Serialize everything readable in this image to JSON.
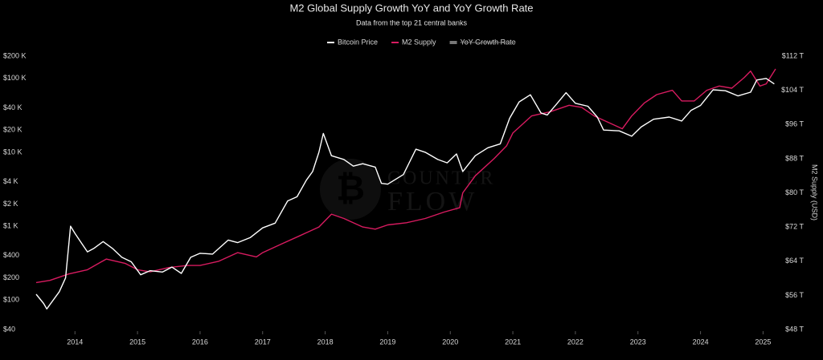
{
  "chart_data": {
    "type": "line",
    "title": "M2 Global Supply Growth YoY and YoY Growth Rate",
    "subtitle": "Data from the top 21 central banks",
    "y2_label": "M2 Supply (USD)",
    "watermark": [
      "COUNTER",
      "FLOW"
    ],
    "ylog": true,
    "grid": false,
    "legend": "top",
    "xlim": [
      2013.38,
      2025.2
    ],
    "xticks": [
      2014,
      2015,
      2016,
      2017,
      2018,
      2019,
      2020,
      2021,
      2022,
      2023,
      2024,
      2025
    ],
    "ylim": [
      40,
      200000
    ],
    "yticks": [
      {
        "value": 40,
        "label": "$40"
      },
      {
        "value": 100,
        "label": "$100"
      },
      {
        "value": 200,
        "label": "$200"
      },
      {
        "value": 400,
        "label": "$400"
      },
      {
        "value": 1000,
        "label": "$1 K"
      },
      {
        "value": 2000,
        "label": "$2 K"
      },
      {
        "value": 4000,
        "label": "$4 K"
      },
      {
        "value": 10000,
        "label": "$10 K"
      },
      {
        "value": 20000,
        "label": "$20 K"
      },
      {
        "value": 40000,
        "label": "$40 K"
      },
      {
        "value": 100000,
        "label": "$100 K"
      },
      {
        "value": 200000,
        "label": "$200 K"
      }
    ],
    "y2lim": [
      48,
      112
    ],
    "y2ticks": [
      {
        "value": 48,
        "label": "$48 T"
      },
      {
        "value": 56,
        "label": "$56 T"
      },
      {
        "value": 64,
        "label": "$64 T"
      },
      {
        "value": 72,
        "label": "$72 T"
      },
      {
        "value": 80,
        "label": "$80 T"
      },
      {
        "value": 88,
        "label": "$88 T"
      },
      {
        "value": 96,
        "label": "$96 T"
      },
      {
        "value": 104,
        "label": "$104 T"
      },
      {
        "value": 112,
        "label": "$112 T"
      }
    ],
    "series": [
      {
        "name": "Bitcoin Price",
        "color": "#ffffff",
        "axis": "y",
        "x": [
          2013.38,
          2013.5,
          2013.55,
          2013.75,
          2013.85,
          2013.93,
          2014.0,
          2014.1,
          2014.2,
          2014.3,
          2014.45,
          2014.6,
          2014.75,
          2014.9,
          2015.05,
          2015.2,
          2015.4,
          2015.55,
          2015.7,
          2015.85,
          2016.0,
          2016.2,
          2016.45,
          2016.6,
          2016.8,
          2017.0,
          2017.2,
          2017.4,
          2017.55,
          2017.7,
          2017.8,
          2017.9,
          2017.97,
          2018.1,
          2018.3,
          2018.45,
          2018.6,
          2018.8,
          2018.9,
          2019.0,
          2019.25,
          2019.45,
          2019.6,
          2019.8,
          2019.95,
          2020.1,
          2020.2,
          2020.4,
          2020.6,
          2020.8,
          2020.95,
          2021.1,
          2021.28,
          2021.45,
          2021.55,
          2021.7,
          2021.85,
          2022.0,
          2022.2,
          2022.35,
          2022.45,
          2022.7,
          2022.9,
          2023.05,
          2023.25,
          2023.5,
          2023.7,
          2023.85,
          2024.0,
          2024.2,
          2024.4,
          2024.6,
          2024.8,
          2024.9,
          2025.05,
          2025.18
        ],
        "values": [
          120,
          90,
          76,
          130,
          200,
          1000,
          800,
          600,
          450,
          500,
          620,
          500,
          380,
          330,
          220,
          250,
          240,
          280,
          230,
          380,
          430,
          420,
          650,
          600,
          700,
          950,
          1100,
          2200,
          2500,
          4200,
          5500,
          10000,
          18000,
          9000,
          8000,
          6500,
          7000,
          6300,
          3800,
          3700,
          5000,
          11000,
          10000,
          8000,
          7200,
          9500,
          5500,
          9000,
          11500,
          13000,
          29000,
          48000,
          60000,
          34000,
          32000,
          45000,
          64000,
          46000,
          42000,
          30000,
          20000,
          19500,
          16500,
          22000,
          28000,
          30000,
          26500,
          37000,
          43000,
          70000,
          68000,
          58000,
          65000,
          95000,
          100000,
          84000
        ]
      },
      {
        "name": "M2 Supply",
        "color": "#d81b60",
        "axis": "y2",
        "x": [
          2013.38,
          2013.6,
          2013.9,
          2014.2,
          2014.5,
          2014.8,
          2015.0,
          2015.2,
          2015.5,
          2015.8,
          2016.0,
          2016.3,
          2016.6,
          2016.9,
          2017.0,
          2017.3,
          2017.6,
          2017.9,
          2018.1,
          2018.3,
          2018.6,
          2018.8,
          2019.0,
          2019.3,
          2019.6,
          2019.9,
          2020.15,
          2020.2,
          2020.4,
          2020.7,
          2020.9,
          2021.0,
          2021.3,
          2021.6,
          2021.9,
          2022.1,
          2022.3,
          2022.6,
          2022.75,
          2022.9,
          2023.1,
          2023.3,
          2023.55,
          2023.7,
          2023.9,
          2024.1,
          2024.3,
          2024.5,
          2024.7,
          2024.8,
          2024.95,
          2025.05,
          2025.2
        ],
        "values": [
          59,
          59.5,
          61,
          62,
          64.5,
          63.5,
          62,
          61.5,
          62.5,
          63,
          63,
          64,
          66,
          65,
          66,
          68,
          70,
          72,
          75,
          74,
          72,
          71.5,
          72.5,
          73,
          74,
          75.5,
          76.5,
          80,
          84,
          88,
          91,
          94,
          98,
          99,
          100.5,
          100,
          98,
          96,
          95,
          98,
          101,
          103,
          104,
          101.5,
          101.5,
          104,
          105,
          104.5,
          107,
          108.5,
          105,
          105.5,
          109
        ]
      }
    ],
    "inactive_series": [
      {
        "name": "YoY Growth Rate",
        "color": "#777777"
      }
    ]
  }
}
